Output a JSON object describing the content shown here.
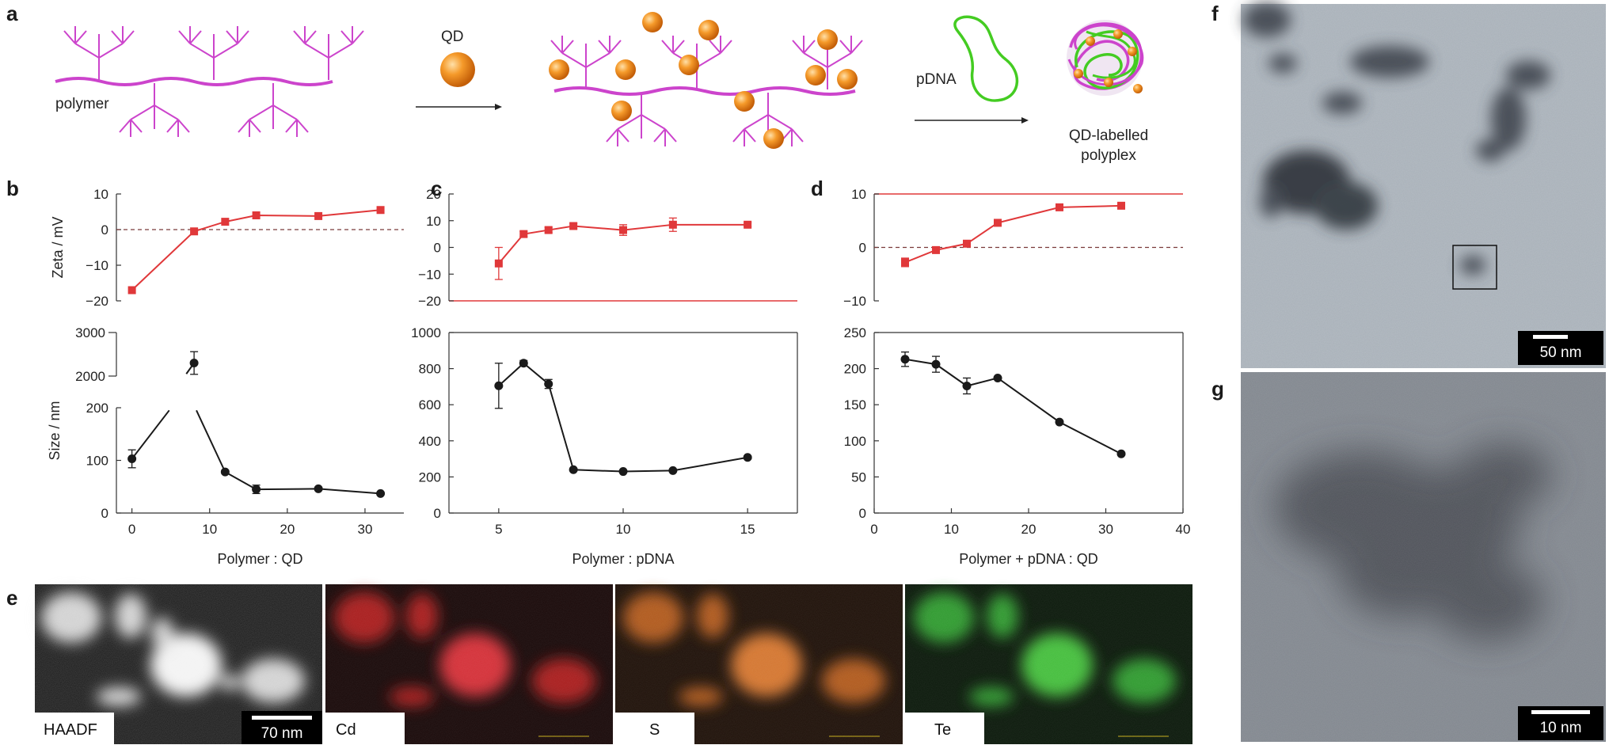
{
  "panel_labels": {
    "a": "a",
    "b": "b",
    "c": "c",
    "d": "d",
    "e": "e",
    "f": "f",
    "g": "g"
  },
  "schematic": {
    "polymer": "polymer",
    "qd": "QD",
    "pdna": "pDNA",
    "product_line1": "QD-labelled",
    "product_line2": "polyplex"
  },
  "colors": {
    "polymer": "#cc44cc",
    "qd": "#f08a1c",
    "pdna": "#44cc22",
    "zeta": "#e0383a",
    "size": "#1a1a1a"
  },
  "axis_titles": {
    "zeta": "Zeta / mV",
    "size": "Size / nm"
  },
  "chart_data": [
    {
      "panel": "b",
      "type": "line",
      "xlabel": "Polymer : QD",
      "xlim": [
        -2,
        35
      ],
      "xticks": [
        0,
        10,
        20,
        30
      ],
      "zeta": {
        "ylim": [
          -20,
          10
        ],
        "yticks": [
          10,
          0,
          -10,
          -20
        ],
        "reference_line": 0,
        "x": [
          0,
          8,
          12,
          16,
          24,
          32
        ],
        "y": [
          -17,
          -0.5,
          2.2,
          4,
          3.8,
          5.5
        ],
        "err": [
          0.3,
          0.3,
          0.3,
          0.4,
          0.4,
          0.3
        ]
      },
      "size": {
        "broken_axis": true,
        "lower_ylim": [
          0,
          200
        ],
        "lower_yticks": [
          0,
          100,
          200
        ],
        "upper_ylim": [
          2000,
          3000
        ],
        "upper_yticks": [
          2000,
          3000
        ],
        "x": [
          0,
          8,
          12,
          16,
          24,
          32
        ],
        "y": [
          103,
          2300,
          78,
          45,
          46,
          37
        ],
        "err": [
          17,
          260,
          3,
          8,
          3,
          2
        ]
      }
    },
    {
      "panel": "c",
      "type": "line",
      "xlabel": "Polymer : pDNA",
      "xlim": [
        3,
        17
      ],
      "xticks": [
        5,
        10,
        15
      ],
      "zeta": {
        "ylim": [
          -20,
          20
        ],
        "yticks": [
          20,
          10,
          0,
          -10,
          -20
        ],
        "x": [
          5,
          6,
          7,
          8,
          10,
          12,
          15
        ],
        "y": [
          -6,
          5,
          6.5,
          8,
          6.5,
          8.5,
          8.5
        ],
        "err": [
          6,
          1,
          1,
          1,
          2,
          2.5,
          0.7
        ]
      },
      "size": {
        "ylim": [
          0,
          1000
        ],
        "yticks": [
          0,
          200,
          400,
          600,
          800,
          1000
        ],
        "x": [
          5,
          6,
          7,
          8,
          10,
          12,
          15
        ],
        "y": [
          705,
          830,
          715,
          240,
          230,
          235,
          308
        ],
        "err": [
          125,
          15,
          25,
          5,
          5,
          5,
          8
        ]
      }
    },
    {
      "panel": "d",
      "type": "line",
      "xlabel": "Polymer + pDNA : QD",
      "xlim": [
        0,
        40
      ],
      "xticks": [
        0,
        10,
        20,
        30,
        40
      ],
      "zeta": {
        "ylim": [
          -10,
          10
        ],
        "yticks": [
          10,
          0,
          -10
        ],
        "reference_line": 0,
        "x": [
          4,
          8,
          12,
          16,
          24,
          32
        ],
        "y": [
          -2.8,
          -0.5,
          0.7,
          4.6,
          7.5,
          7.8
        ],
        "err": [
          0.8,
          0.3,
          0.3,
          0.3,
          0.3,
          0.3
        ]
      },
      "size": {
        "ylim": [
          0,
          250
        ],
        "yticks": [
          0,
          50,
          100,
          150,
          200,
          250
        ],
        "x": [
          4,
          8,
          12,
          16,
          24,
          32
        ],
        "y": [
          213,
          206,
          176,
          187,
          126,
          82
        ],
        "err": [
          10,
          11,
          11,
          2,
          2,
          2
        ]
      }
    }
  ],
  "eds_maps": [
    {
      "label": "HAADF",
      "scalebar": "70 nm"
    },
    {
      "label": "Cd",
      "scalebar": ""
    },
    {
      "label": "S",
      "scalebar": ""
    },
    {
      "label": "Te",
      "scalebar": ""
    }
  ],
  "tem": {
    "f_scalebar": "50 nm",
    "g_scalebar": "10 nm"
  }
}
